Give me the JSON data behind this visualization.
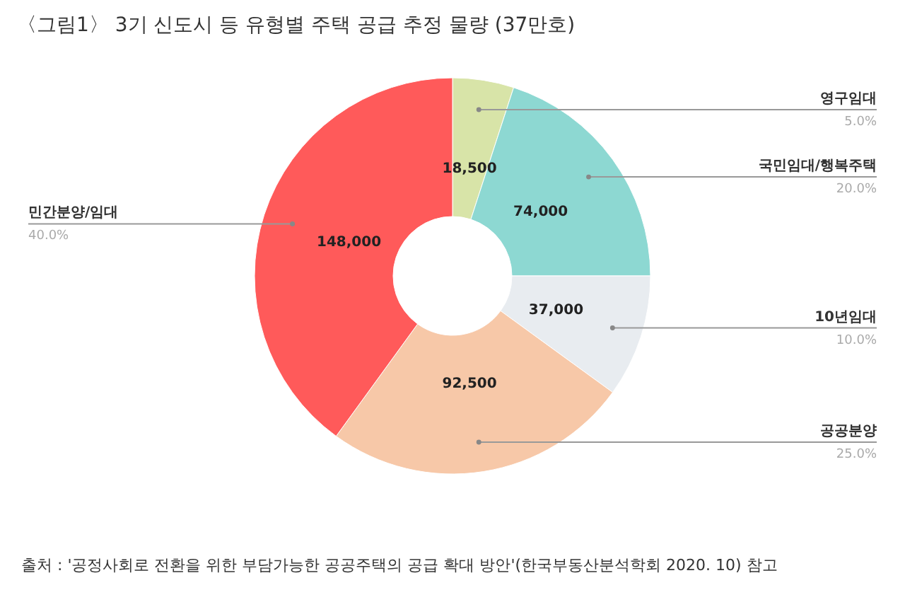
{
  "chart_data": {
    "type": "donut",
    "title": "〈그림1〉 3기 신도시 등 유형별 주택 공급 추정 물량 (37만호)",
    "categories": [
      "영구임대",
      "국민임대/행복주택",
      "10년임대",
      "공공분양",
      "민간분양/임대"
    ],
    "values": [
      18500,
      74000,
      37000,
      92500,
      148000
    ],
    "colors": [
      "#d8e4a8",
      "#8dd8d2",
      "#e8ecf0",
      "#f7c8a8",
      "#ff5a5a"
    ],
    "value_labels": [
      "18,500",
      "74,000",
      "37,000",
      "92,500",
      "148,000"
    ],
    "legend": false,
    "annotations": [
      {
        "text": "5.0%",
        "x": "영구임대"
      },
      {
        "text": "20.0%",
        "x": "국민임대/행복주택"
      },
      {
        "text": "10.0%",
        "x": "10년임대"
      },
      {
        "text": "25.0%",
        "x": "공공분양"
      },
      {
        "text": "40.0%",
        "x": "민간분양/임대"
      },
      "출처 : '공정사회로 전환을 위한 부담가능한 공공주택의 공급 확대 방안'(한국부동산분석학회 2020. 10) 참고"
    ]
  }
}
